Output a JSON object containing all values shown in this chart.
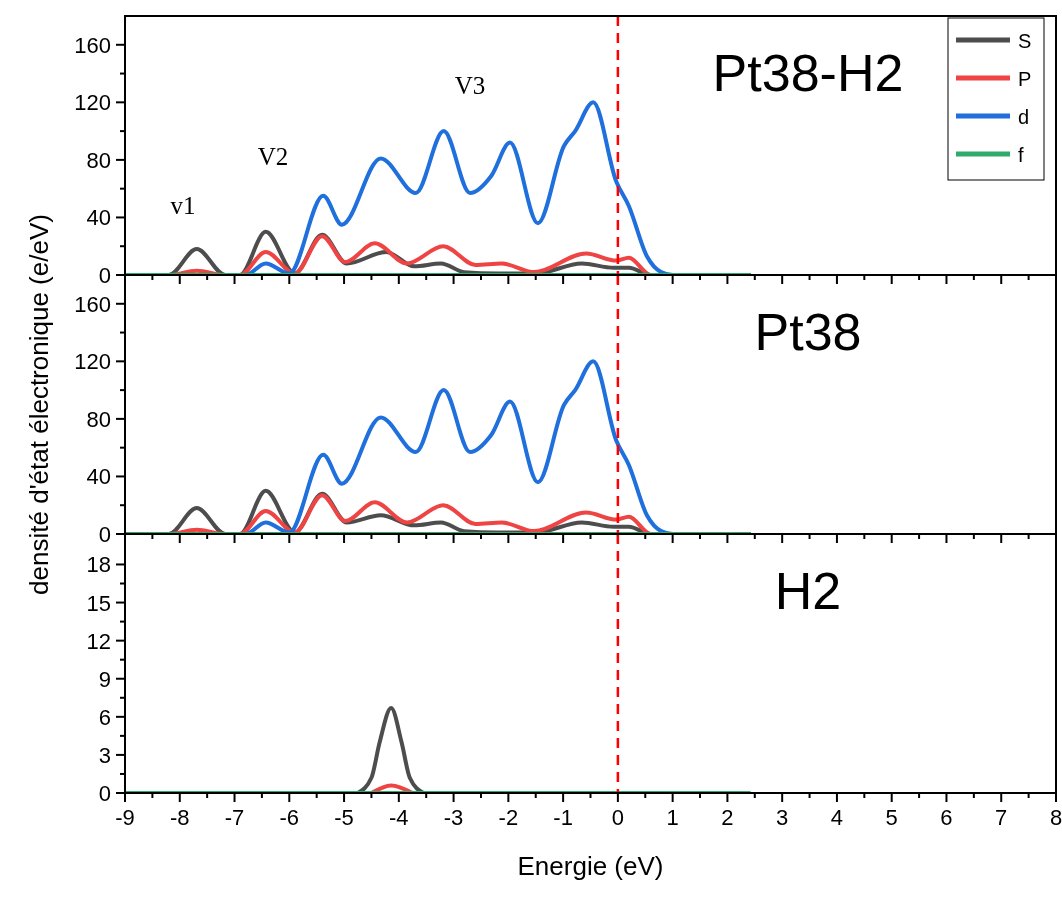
{
  "chart_data": [
    {
      "type": "line",
      "title": "Pt38-H2",
      "xlim": [
        -9,
        8
      ],
      "xticks": [
        -9,
        {
          "value": -8.5,
          "label": null
        },
        -8,
        {
          "value": -7.5,
          "label": null
        },
        -7,
        {
          "value": -6.5,
          "label": null
        },
        -6,
        {
          "value": -5.5,
          "label": null
        },
        -5,
        {
          "value": -4.5,
          "label": null
        },
        -4,
        {
          "value": -3.5,
          "label": null
        },
        -3,
        {
          "value": -2.5,
          "label": null
        },
        -2,
        {
          "value": -1.5,
          "label": null
        },
        -1,
        {
          "value": -0.5,
          "label": null
        },
        0,
        {
          "value": 0.5,
          "label": null
        },
        1,
        {
          "value": 1.5,
          "label": null
        },
        2,
        {
          "value": 2.5,
          "label": null
        },
        3,
        {
          "value": 3.5,
          "label": null
        },
        4,
        {
          "value": 4.5,
          "label": null
        },
        5,
        {
          "value": 5.5,
          "label": null
        },
        6,
        {
          "value": 6.5,
          "label": null
        },
        7,
        {
          "value": 7.5,
          "label": null
        },
        8
      ],
      "ylim": [
        0,
        180
      ],
      "yticks": [
        0,
        {
          "value": 20,
          "label": null
        },
        40,
        {
          "value": 60,
          "label": null
        },
        80,
        {
          "value": 100,
          "label": null
        },
        120,
        {
          "value": 140,
          "label": null
        },
        160
      ],
      "tick_labels": "y",
      "legend": "top right",
      "line_style": "solid",
      "marker": "none",
      "series": [
        {
          "name": "S",
          "color": "#4d4d4d",
          "x": [
            -9,
            -8.2,
            -7.69,
            -7.17,
            -6.9,
            -6.43,
            -5.9,
            -5.4,
            -4.95,
            -4.23,
            -3.72,
            -3.23,
            -2.81,
            -2.2,
            -1.5,
            -0.66,
            -0.08,
            0.2,
            0.6,
            2.4
          ],
          "values": [
            0,
            0,
            18,
            0,
            0,
            30,
            1,
            28,
            8,
            16,
            6,
            8,
            2,
            1,
            1,
            8,
            5,
            5,
            0,
            0
          ]
        },
        {
          "name": "P",
          "color": "#ee4444",
          "x": [
            -9,
            -8.2,
            -7.69,
            -7.17,
            -6.9,
            -6.43,
            -5.9,
            -5.4,
            -4.98,
            -4.44,
            -3.85,
            -3.19,
            -2.6,
            -2.12,
            -1.53,
            -0.58,
            -0.03,
            0.2,
            0.6,
            2.4
          ],
          "values": [
            0,
            0,
            3,
            0,
            0,
            16,
            1,
            27,
            9,
            22,
            8,
            20,
            7,
            8,
            2,
            15,
            10,
            12,
            0,
            0
          ]
        },
        {
          "name": "d",
          "color": "#1f6fdc",
          "x": [
            -9,
            -6.8,
            -6.43,
            -6.0,
            -5.38,
            -5.04,
            -4.33,
            -3.69,
            -3.18,
            -2.7,
            -2.31,
            -1.97,
            -1.46,
            -0.98,
            -0.78,
            -0.45,
            -0.03,
            0.2,
            0.53,
            0.79,
            1.0,
            2.4
          ],
          "values": [
            0,
            0,
            8,
            1,
            55,
            35,
            81,
            57,
            100,
            57,
            69,
            92,
            36,
            90,
            100,
            120,
            65,
            48,
            13,
            2,
            0,
            0
          ]
        },
        {
          "name": "f",
          "color": "#2eaa6a",
          "x": [
            -9,
            2.4
          ],
          "values": [
            0,
            0
          ]
        }
      ],
      "ref_lines": [
        {
          "axis": "x",
          "value": 0,
          "color": "#ff0000",
          "line_style": "dashed"
        }
      ],
      "annotations": [
        "v1",
        "V2",
        "V3"
      ]
    },
    {
      "type": "line",
      "title": "Pt38",
      "ylabel": "densité d'état électronique (e/eV)",
      "xlim": [
        -9,
        8
      ],
      "xticks": [
        -9,
        {
          "value": -8.5,
          "label": null
        },
        -8,
        {
          "value": -7.5,
          "label": null
        },
        -7,
        {
          "value": -6.5,
          "label": null
        },
        -6,
        {
          "value": -5.5,
          "label": null
        },
        -5,
        {
          "value": -4.5,
          "label": null
        },
        -4,
        {
          "value": -3.5,
          "label": null
        },
        -3,
        {
          "value": -2.5,
          "label": null
        },
        -2,
        {
          "value": -1.5,
          "label": null
        },
        -1,
        {
          "value": -0.5,
          "label": null
        },
        0,
        {
          "value": 0.5,
          "label": null
        },
        1,
        {
          "value": 1.5,
          "label": null
        },
        2,
        {
          "value": 2.5,
          "label": null
        },
        3,
        {
          "value": 3.5,
          "label": null
        },
        4,
        {
          "value": 4.5,
          "label": null
        },
        5,
        {
          "value": 5.5,
          "label": null
        },
        6,
        {
          "value": 6.5,
          "label": null
        },
        7,
        {
          "value": 7.5,
          "label": null
        },
        8
      ],
      "ylim": [
        0,
        180
      ],
      "yticks": [
        0,
        {
          "value": 20,
          "label": null
        },
        40,
        {
          "value": 60,
          "label": null
        },
        80,
        {
          "value": 100,
          "label": null
        },
        120,
        {
          "value": 140,
          "label": null
        },
        160
      ],
      "tick_labels": "y",
      "line_style": "solid",
      "marker": "none",
      "series": [
        {
          "color": "#4d4d4d",
          "x": [
            -9,
            -8.2,
            -7.69,
            -7.17,
            -6.9,
            -6.43,
            -5.9,
            -5.4,
            -4.95,
            -4.33,
            -3.72,
            -3.23,
            -2.81,
            -2.2,
            -1.5,
            -0.66,
            -0.08,
            0.2,
            0.6,
            2.4
          ],
          "values": [
            0,
            0,
            18,
            0,
            0,
            30,
            1,
            28,
            8,
            13,
            6,
            8,
            2,
            1,
            1,
            8,
            5,
            5,
            0,
            0
          ]
        },
        {
          "color": "#ee4444",
          "x": [
            -9,
            -8.2,
            -7.69,
            -7.17,
            -6.9,
            -6.43,
            -5.9,
            -5.4,
            -4.98,
            -4.44,
            -3.85,
            -3.19,
            -2.6,
            -2.12,
            -1.53,
            -0.58,
            -0.03,
            0.2,
            0.6,
            2.4
          ],
          "values": [
            0,
            0,
            3,
            0,
            0,
            16,
            1,
            27,
            9,
            22,
            8,
            20,
            7,
            8,
            2,
            15,
            10,
            12,
            0,
            0
          ]
        },
        {
          "color": "#1f6fdc",
          "x": [
            -9,
            -6.8,
            -6.43,
            -6.0,
            -5.38,
            -5.04,
            -4.33,
            -3.69,
            -3.18,
            -2.7,
            -2.31,
            -1.97,
            -1.46,
            -0.98,
            -0.78,
            -0.45,
            -0.03,
            0.2,
            0.53,
            0.79,
            1.0,
            2.4
          ],
          "values": [
            0,
            0,
            8,
            1,
            55,
            35,
            81,
            57,
            100,
            57,
            69,
            92,
            36,
            90,
            100,
            120,
            65,
            48,
            13,
            2,
            0,
            0
          ]
        },
        {
          "color": "#2eaa6a",
          "x": [
            -9,
            2.4
          ],
          "values": [
            0,
            0
          ]
        }
      ],
      "ref_lines": [
        {
          "axis": "x",
          "value": 0,
          "color": "#ff0000",
          "line_style": "dashed"
        }
      ]
    },
    {
      "type": "line",
      "title": "H2",
      "xlabel": "Energie (eV)",
      "xlim": [
        -9,
        8
      ],
      "xticks": [
        -9,
        {
          "value": -8.5,
          "label": null
        },
        -8,
        {
          "value": -7.5,
          "label": null
        },
        -7,
        {
          "value": -6.5,
          "label": null
        },
        -6,
        {
          "value": -5.5,
          "label": null
        },
        -5,
        {
          "value": -4.5,
          "label": null
        },
        -4,
        {
          "value": -3.5,
          "label": null
        },
        -3,
        {
          "value": -2.5,
          "label": null
        },
        -2,
        {
          "value": -1.5,
          "label": null
        },
        -1,
        {
          "value": -0.5,
          "label": null
        },
        0,
        {
          "value": 0.5,
          "label": null
        },
        1,
        {
          "value": 1.5,
          "label": null
        },
        2,
        {
          "value": 2.5,
          "label": null
        },
        3,
        {
          "value": 3.5,
          "label": null
        },
        4,
        {
          "value": 4.5,
          "label": null
        },
        5,
        {
          "value": 5.5,
          "label": null
        },
        6,
        {
          "value": 6.5,
          "label": null
        },
        7,
        {
          "value": 7.5,
          "label": null
        },
        8
      ],
      "ylim": [
        0,
        20.4
      ],
      "yticks": [
        0,
        {
          "value": 1.5,
          "label": null
        },
        3,
        {
          "value": 4.5,
          "label": null
        },
        6,
        {
          "value": 7.5,
          "label": null
        },
        9,
        {
          "value": 10.5,
          "label": null
        },
        12,
        {
          "value": 13.5,
          "label": null
        },
        15,
        {
          "value": 16.5,
          "label": null
        },
        18
      ],
      "line_style": "solid",
      "marker": "none",
      "series": [
        {
          "color": "#4d4d4d",
          "x": [
            -4.75,
            -4.5,
            -4.35,
            -4.14,
            -3.95,
            -3.8,
            -3.55
          ],
          "values": [
            0,
            1.2,
            4,
            6.7,
            4,
            1.2,
            0
          ]
        },
        {
          "color": "#ee4444",
          "x": [
            -4.5,
            -4.14,
            -3.75
          ],
          "values": [
            0,
            0.6,
            0
          ]
        },
        {
          "color": "#2eaa6a",
          "x": [
            -9,
            2.4
          ],
          "values": [
            0,
            0
          ]
        }
      ],
      "ref_lines": [
        {
          "axis": "x",
          "value": 0,
          "color": "#ff0000",
          "line_style": "dashed"
        }
      ]
    }
  ]
}
